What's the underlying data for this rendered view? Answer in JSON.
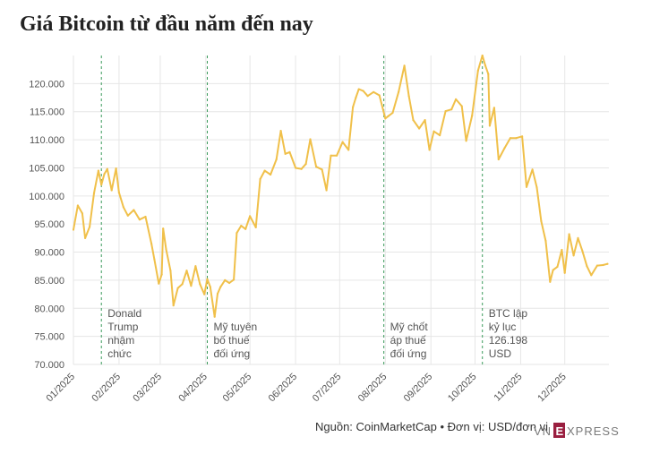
{
  "title": "Giá Bitcoin từ đầu năm đến nay",
  "footer": {
    "source": "Nguồn: CoinMarketCap • Đơn vị: USD/đơn vị"
  },
  "logo": {
    "text": "VNEXPRESS",
    "color": "#9a1f40"
  },
  "colors": {
    "line": "#f0c04a",
    "event_line": "#3a9a5a",
    "grid": "#e6e6e6",
    "axis_text": "#555555"
  },
  "chart_data": {
    "type": "line",
    "title": "Giá Bitcoin từ đầu năm đến nay",
    "xlabel": "",
    "ylabel": "",
    "grid": true,
    "ylim": [
      70000,
      125000
    ],
    "xlim": [
      "2025-01-01",
      "2025-12-31"
    ],
    "ytick_labels": [
      "70.000",
      "75.000",
      "80.000",
      "85.000",
      "90.000",
      "95.000",
      "100.000",
      "105.000",
      "110.000",
      "115.000",
      "120.000"
    ],
    "ytick_values": [
      70000,
      75000,
      80000,
      85000,
      90000,
      95000,
      100000,
      105000,
      110000,
      115000,
      120000
    ],
    "xtick_labels": [
      "01/2025",
      "02/2025",
      "03/2025",
      "04/2025",
      "05/2025",
      "06/2025",
      "07/2025",
      "08/2025",
      "09/2025",
      "10/2025",
      "11/2025",
      "12/2025"
    ],
    "xtick_dates": [
      "2025-01-01",
      "2025-02-01",
      "2025-03-01",
      "2025-04-01",
      "2025-05-01",
      "2025-06-01",
      "2025-07-01",
      "2025-08-01",
      "2025-09-01",
      "2025-10-01",
      "2025-11-01",
      "2025-12-01"
    ],
    "series": [
      {
        "x": [
          "2025-01-01",
          "2025-01-04",
          "2025-01-07",
          "2025-01-09",
          "2025-01-12",
          "2025-01-15",
          "2025-01-18",
          "2025-01-20",
          "2025-01-22",
          "2025-01-24",
          "2025-01-27",
          "2025-01-30",
          "2025-02-01",
          "2025-02-04",
          "2025-02-07",
          "2025-02-11",
          "2025-02-15",
          "2025-02-19",
          "2025-02-23",
          "2025-02-25",
          "2025-02-28",
          "2025-03-02",
          "2025-03-03",
          "2025-03-05",
          "2025-03-08",
          "2025-03-10",
          "2025-03-13",
          "2025-03-16",
          "2025-03-19",
          "2025-03-22",
          "2025-03-25",
          "2025-03-28",
          "2025-03-31",
          "2025-04-02",
          "2025-04-04",
          "2025-04-07",
          "2025-04-09",
          "2025-04-11",
          "2025-04-14",
          "2025-04-17",
          "2025-04-20",
          "2025-04-22",
          "2025-04-25",
          "2025-04-28",
          "2025-05-01",
          "2025-05-05",
          "2025-05-08",
          "2025-05-11",
          "2025-05-15",
          "2025-05-19",
          "2025-05-22",
          "2025-05-25",
          "2025-05-28",
          "2025-06-01",
          "2025-06-05",
          "2025-06-08",
          "2025-06-11",
          "2025-06-15",
          "2025-06-19",
          "2025-06-22",
          "2025-06-25",
          "2025-06-29",
          "2025-07-03",
          "2025-07-07",
          "2025-07-10",
          "2025-07-12",
          "2025-07-14",
          "2025-07-17",
          "2025-07-20",
          "2025-07-24",
          "2025-07-28",
          "2025-08-01",
          "2025-08-03",
          "2025-08-06",
          "2025-08-10",
          "2025-08-14",
          "2025-08-17",
          "2025-08-20",
          "2025-08-24",
          "2025-08-28",
          "2025-08-31",
          "2025-09-03",
          "2025-09-07",
          "2025-09-11",
          "2025-09-15",
          "2025-09-18",
          "2025-09-22",
          "2025-09-25",
          "2025-09-29",
          "2025-10-03",
          "2025-10-06",
          "2025-10-08",
          "2025-10-10",
          "2025-10-11",
          "2025-10-14",
          "2025-10-17",
          "2025-10-21",
          "2025-10-25",
          "2025-10-29",
          "2025-11-02",
          "2025-11-05",
          "2025-11-09",
          "2025-11-12",
          "2025-11-15",
          "2025-11-18",
          "2025-11-21",
          "2025-11-23",
          "2025-11-26",
          "2025-11-29",
          "2025-12-01",
          "2025-12-04",
          "2025-12-07",
          "2025-12-10",
          "2025-12-13",
          "2025-12-16",
          "2025-12-19",
          "2025-12-23",
          "2025-12-27",
          "2025-12-30"
        ],
        "values": [
          94000,
          98300,
          96900,
          92500,
          94500,
          100500,
          104500,
          102000,
          103900,
          104800,
          101000,
          104900,
          100600,
          98000,
          96500,
          97500,
          95800,
          96300,
          91500,
          88700,
          84400,
          86000,
          94200,
          90500,
          86700,
          80500,
          83600,
          84300,
          86700,
          84000,
          87500,
          84300,
          82500,
          85200,
          83800,
          78500,
          82600,
          83800,
          85000,
          84500,
          85100,
          93400,
          94700,
          94100,
          96400,
          94400,
          103000,
          104500,
          103800,
          106500,
          111600,
          107500,
          107800,
          105000,
          104800,
          105700,
          110100,
          105200,
          104700,
          101000,
          107200,
          107200,
          109600,
          108200,
          115800,
          117500,
          119000,
          118700,
          117800,
          118500,
          117900,
          113800,
          114200,
          114800,
          118500,
          123200,
          117800,
          113500,
          112000,
          113500,
          108200,
          111500,
          110800,
          115100,
          115400,
          117200,
          116000,
          109800,
          114300,
          122300,
          125000,
          123200,
          121700,
          112500,
          115700,
          106500,
          108500,
          110300,
          110300,
          110600,
          101600,
          104700,
          101500,
          95500,
          92000,
          84700,
          86800,
          87400,
          90400,
          86300,
          93200,
          89400,
          92500,
          90200,
          87500,
          85900,
          87600,
          87700,
          87900
        ]
      }
    ],
    "events": [
      {
        "date": "2025-01-20",
        "label": [
          "Donald",
          "Trump",
          "nhậm",
          "chức"
        ]
      },
      {
        "date": "2025-04-02",
        "label": [
          "Mỹ tuyên",
          "bố thuế",
          "đối ứng"
        ]
      },
      {
        "date": "2025-07-31",
        "label": [
          "Mỹ chốt",
          "áp thuế",
          "đối ứng"
        ]
      },
      {
        "date": "2025-10-06",
        "label": [
          "BTC lập",
          "kỷ lục",
          "126.198",
          "USD"
        ]
      }
    ]
  }
}
